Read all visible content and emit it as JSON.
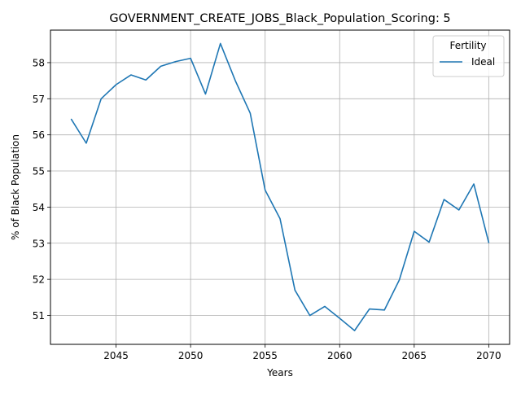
{
  "chart_data": {
    "type": "line",
    "title": "GOVERNMENT_CREATE_JOBS_Black_Population_Scoring: 5",
    "xlabel": "Years",
    "ylabel": "% of Black Population",
    "xlim": [
      2040.6,
      2071.4
    ],
    "ylim": [
      50.2,
      58.9
    ],
    "x_ticks": [
      2045,
      2050,
      2055,
      2060,
      2065,
      2070
    ],
    "y_ticks": [
      51,
      52,
      53,
      54,
      55,
      56,
      57,
      58
    ],
    "grid": true,
    "legend": {
      "title": "Fertility",
      "placement": "upper right"
    },
    "x": [
      2042,
      2043,
      2044,
      2045,
      2046,
      2047,
      2048,
      2049,
      2050,
      2051,
      2052,
      2053,
      2054,
      2055,
      2056,
      2057,
      2058,
      2059,
      2060,
      2061,
      2062,
      2063,
      2064,
      2065,
      2066,
      2067,
      2068,
      2069,
      2070
    ],
    "series": [
      {
        "name": "Ideal",
        "color": "#1f77b4",
        "values": [
          56.43,
          55.77,
          57.0,
          57.39,
          57.66,
          57.52,
          57.9,
          58.03,
          58.12,
          57.13,
          58.53,
          57.5,
          56.6,
          54.47,
          53.68,
          51.7,
          51.0,
          51.25,
          50.92,
          50.58,
          51.18,
          51.15,
          51.98,
          53.33,
          53.03,
          54.21,
          53.92,
          54.64,
          53.02
        ]
      }
    ]
  }
}
